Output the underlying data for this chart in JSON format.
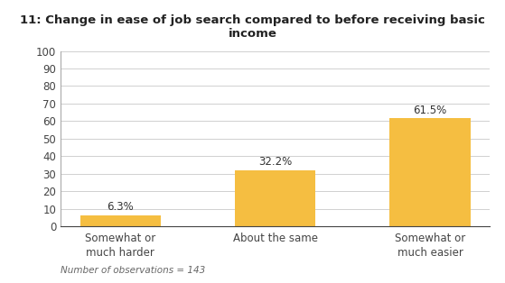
{
  "title": "11: Change in ease of job search compared to before receiving basic income",
  "categories": [
    "Somewhat or\nmuch harder",
    "About the same",
    "Somewhat or\nmuch easier"
  ],
  "values": [
    6.3,
    32.2,
    61.5
  ],
  "labels": [
    "6.3%",
    "32.2%",
    "61.5%"
  ],
  "bar_color": "#F5BE41",
  "ylim": [
    0,
    100
  ],
  "yticks": [
    0,
    10,
    20,
    30,
    40,
    50,
    60,
    70,
    80,
    90,
    100
  ],
  "footnote": "Number of observations = 143",
  "title_fontsize": 9.5,
  "label_fontsize": 8.5,
  "tick_fontsize": 8.5,
  "footnote_fontsize": 7.5,
  "background_color": "#ffffff",
  "grid_color": "#d0d0d0"
}
